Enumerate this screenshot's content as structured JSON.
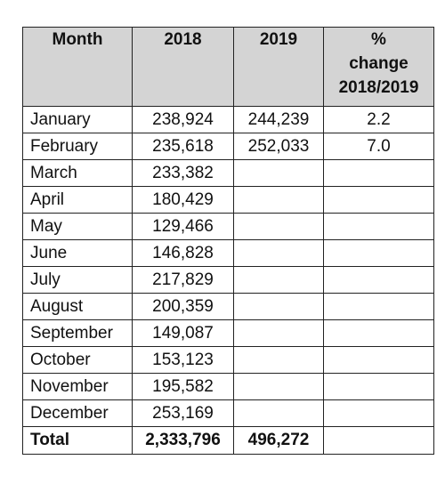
{
  "table": {
    "headers": {
      "month": "Month",
      "y2018": "2018",
      "y2019": "2019",
      "pct_line1": "%",
      "pct_line2": "change",
      "pct_line3": "2018/2019"
    },
    "rows": [
      {
        "month": "January",
        "y2018": "238,924",
        "y2019": "244,239",
        "pct": "2.2"
      },
      {
        "month": "February",
        "y2018": "235,618",
        "y2019": "252,033",
        "pct": "7.0"
      },
      {
        "month": "March",
        "y2018": "233,382",
        "y2019": "",
        "pct": ""
      },
      {
        "month": "April",
        "y2018": "180,429",
        "y2019": "",
        "pct": ""
      },
      {
        "month": "May",
        "y2018": "129,466",
        "y2019": "",
        "pct": ""
      },
      {
        "month": "June",
        "y2018": "146,828",
        "y2019": "",
        "pct": ""
      },
      {
        "month": "July",
        "y2018": "217,829",
        "y2019": "",
        "pct": ""
      },
      {
        "month": "August",
        "y2018": "200,359",
        "y2019": "",
        "pct": ""
      },
      {
        "month": "September",
        "y2018": "149,087",
        "y2019": "",
        "pct": ""
      },
      {
        "month": "October",
        "y2018": "153,123",
        "y2019": "",
        "pct": ""
      },
      {
        "month": "November",
        "y2018": "195,582",
        "y2019": "",
        "pct": ""
      },
      {
        "month": "December",
        "y2018": "253,169",
        "y2019": "",
        "pct": ""
      }
    ],
    "total": {
      "label": "Total",
      "y2018": "2,333,796",
      "y2019": "496,272",
      "pct": ""
    },
    "colors": {
      "header_bg": "#d4d4d4",
      "border": "#222222"
    }
  }
}
